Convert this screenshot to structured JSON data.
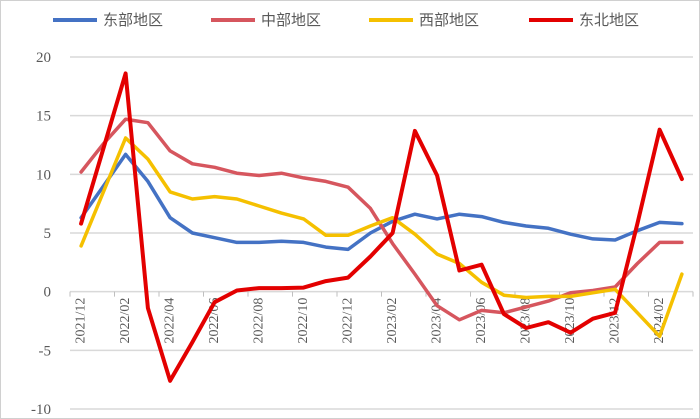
{
  "chart_data": {
    "type": "line",
    "title": "",
    "xlabel": "",
    "ylabel": "",
    "ylim": [
      -10,
      20
    ],
    "yticks": [
      -10,
      -5,
      0,
      5,
      10,
      15,
      20
    ],
    "grid": true,
    "legend_position": "top",
    "categories": [
      "2021/12",
      "2022/01",
      "2022/02",
      "2022/03",
      "2022/04",
      "2022/05",
      "2022/06",
      "2022/07",
      "2022/08",
      "2022/09",
      "2022/10",
      "2022/11",
      "2022/12",
      "2023/01",
      "2023/02",
      "2023/03",
      "2023/04",
      "2023/05",
      "2023/06",
      "2023/07",
      "2023/08",
      "2023/09",
      "2023/10",
      "2023/11",
      "2023/12",
      "2024/01",
      "2024/02",
      "2024/03"
    ],
    "xtick_labels": [
      "2021/12",
      "2022/02",
      "2022/04",
      "2022/06",
      "2022/08",
      "2022/10",
      "2022/12",
      "2023/02",
      "2023/04",
      "2023/06",
      "2023/08",
      "2023/10",
      "2023/12",
      "2024/02"
    ],
    "series": [
      {
        "name": "东部地区",
        "color": "#4472C4",
        "values": [
          6.3,
          9.0,
          11.7,
          9.4,
          6.3,
          5.0,
          4.6,
          4.2,
          4.2,
          4.3,
          4.2,
          3.8,
          3.6,
          5.0,
          6.0,
          6.6,
          6.2,
          6.6,
          6.4,
          5.9,
          5.6,
          5.4,
          4.9,
          4.5,
          4.4,
          5.2,
          5.9,
          5.8
        ]
      },
      {
        "name": "中部地区",
        "color": "#D6565E",
        "values": [
          10.2,
          12.6,
          14.7,
          14.4,
          12.0,
          10.9,
          10.6,
          10.1,
          9.9,
          10.1,
          9.7,
          9.4,
          8.9,
          7.1,
          4.1,
          1.5,
          -1.2,
          -2.4,
          -1.6,
          -1.8,
          -1.3,
          -0.8,
          -0.1,
          0.1,
          0.4,
          2.4,
          4.2,
          4.2
        ]
      },
      {
        "name": "西部地区",
        "color": "#F5C000",
        "values": [
          3.9,
          8.5,
          13.1,
          11.3,
          8.5,
          7.9,
          8.1,
          7.9,
          7.3,
          6.7,
          6.2,
          4.8,
          4.8,
          5.6,
          6.3,
          4.9,
          3.2,
          2.4,
          0.8,
          -0.3,
          -0.5,
          -0.4,
          -0.4,
          -0.1,
          0.2,
          -1.8,
          -3.8,
          1.5
        ]
      },
      {
        "name": "东北地区",
        "color": "#E30000",
        "values": [
          5.8,
          12.2,
          18.6,
          -1.4,
          -7.6,
          -4.3,
          -0.9,
          0.1,
          0.3,
          0.3,
          0.35,
          0.9,
          1.2,
          3.0,
          5.0,
          13.7,
          9.9,
          1.8,
          2.3,
          -1.9,
          -3.1,
          -2.6,
          -3.5,
          -2.3,
          -1.8,
          5.8,
          13.8,
          9.6
        ]
      }
    ]
  }
}
